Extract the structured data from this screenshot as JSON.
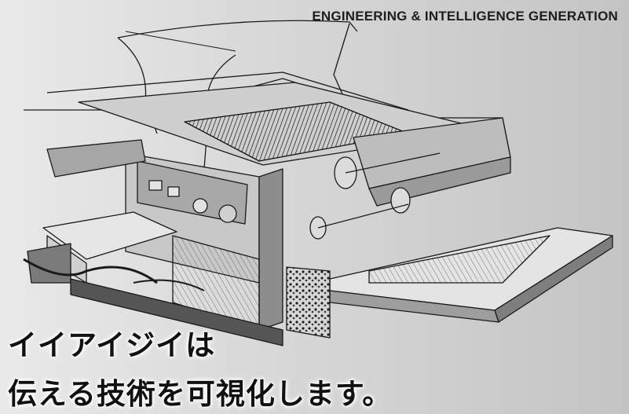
{
  "hero": {
    "tagline": "ENGINEERING & INTELLIGENCE GENERATION",
    "headline_line1": "イイアイジイは",
    "headline_line2": "伝える技術を可視化します。",
    "illustration_subject": "machine-technical-illustration"
  },
  "colors": {
    "background_light": "#e9e9e9",
    "background_dark": "#c4c4c4",
    "text": "#111111",
    "line_art": "#1a1a1a"
  }
}
